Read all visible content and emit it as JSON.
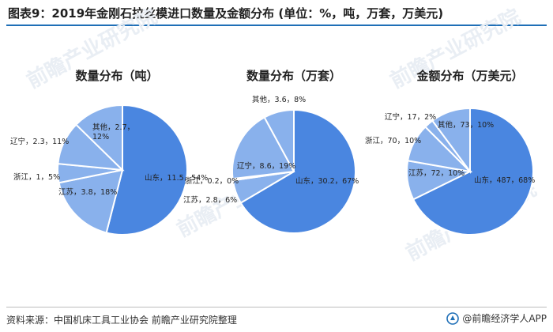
{
  "title": "图表9：2019年金刚石拉丝模进口数量及金额分布 (单位：%，吨，万套，万美元)",
  "source": "资料来源：中国机床工具工业协会 前瞻产业研究院整理",
  "brand": "@前瞻经济学人APP",
  "watermark": "前瞻产业研究院",
  "colors": {
    "primary": "#4a86e0",
    "light": "#89b1ec",
    "accent": "#1f6fb7"
  },
  "chart_data": [
    {
      "type": "pie",
      "title": "数量分布（吨）",
      "slices": [
        {
          "name": "山东",
          "value": 11.5,
          "percent": 54,
          "label": "山东，11.5，54%"
        },
        {
          "name": "江苏",
          "value": 3.8,
          "percent": 18,
          "label": "江苏，3.8，18%"
        },
        {
          "name": "浙江",
          "value": 1,
          "percent": 5,
          "label": "浙江，1，5%"
        },
        {
          "name": "辽宁",
          "value": 2.3,
          "percent": 11,
          "label": "辽宁，2.3，11%"
        },
        {
          "name": "其他",
          "value": 2.7,
          "percent": 12,
          "label": "其他，2.7，12%"
        }
      ]
    },
    {
      "type": "pie",
      "title": "数量分布（万套）",
      "slices": [
        {
          "name": "山东",
          "value": 30.2,
          "percent": 67,
          "label": "山东，30.2，67%"
        },
        {
          "name": "江苏",
          "value": 2.8,
          "percent": 6,
          "label": "江苏，2.8，6%"
        },
        {
          "name": "浙江",
          "value": 0.2,
          "percent": 0,
          "label": "浙江，0.2，0%"
        },
        {
          "name": "辽宁",
          "value": 8.6,
          "percent": 19,
          "label": "辽宁，8.6，19%"
        },
        {
          "name": "其他",
          "value": 3.6,
          "percent": 8,
          "label": "其他，3.6，8%"
        }
      ]
    },
    {
      "type": "pie",
      "title": "金额分布（万美元）",
      "slices": [
        {
          "name": "山东",
          "value": 487,
          "percent": 68,
          "label": "山东，487，68%"
        },
        {
          "name": "江苏",
          "value": 72,
          "percent": 10,
          "label": "江苏，72，10%"
        },
        {
          "name": "浙江",
          "value": 70,
          "percent": 10,
          "label": "浙江，70，10%"
        },
        {
          "name": "辽宁",
          "value": 17,
          "percent": 2,
          "label": "辽宁，17，2%"
        },
        {
          "name": "其他",
          "value": 73,
          "percent": 10,
          "label": "其他，73，10%"
        }
      ]
    }
  ]
}
